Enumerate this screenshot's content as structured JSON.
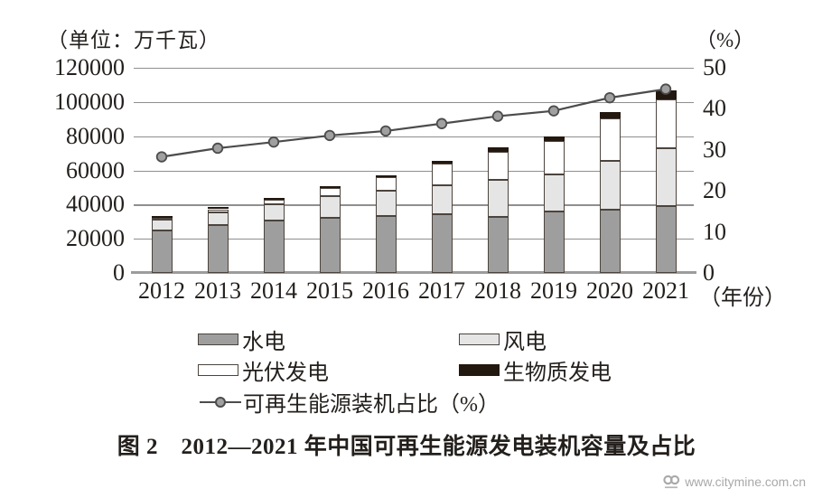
{
  "axes": {
    "left_unit_label": "（单位：万千瓦）",
    "right_unit_label": "（%）",
    "x_unit_label": "（年份）",
    "left_ticks": [
      "120000",
      "100000",
      "80000",
      "60000",
      "40000",
      "20000",
      "0"
    ],
    "right_ticks": [
      "50",
      "40",
      "30",
      "20",
      "10",
      "0"
    ]
  },
  "chart_data": {
    "type": "bar",
    "subtype": "stacked-bars-with-line",
    "categories": [
      "2012",
      "2013",
      "2014",
      "2015",
      "2016",
      "2017",
      "2018",
      "2019",
      "2020",
      "2021"
    ],
    "series": [
      {
        "name": "水电",
        "type": "bar",
        "color": "#9e9e9e",
        "values": [
          24890,
          28040,
          30490,
          32100,
          33210,
          34500,
          32700,
          35900,
          37100,
          39300
        ]
      },
      {
        "name": "风电",
        "type": "bar",
        "color": "#e5e5e5",
        "values": [
          6080,
          7650,
          9660,
          13080,
          14860,
          16700,
          21600,
          21600,
          28400,
          33600
        ]
      },
      {
        "name": "光伏发电",
        "type": "bar",
        "color": "#ffffff",
        "values": [
          340,
          1590,
          2490,
          4320,
          7740,
          12900,
          16500,
          19800,
          24700,
          28800
        ]
      },
      {
        "name": "生物质发电",
        "type": "bar",
        "color": "#221810",
        "values": [
          800,
          850,
          950,
          1030,
          1210,
          1600,
          2900,
          2800,
          3900,
          5300
        ]
      },
      {
        "name": "可再生能源装机占比（%）",
        "type": "line",
        "color": "#4c4c4c",
        "values": [
          28.3,
          30.4,
          31.9,
          33.5,
          34.6,
          36.4,
          38.2,
          39.5,
          42.7,
          44.8
        ]
      }
    ],
    "left_axis": {
      "label": "（单位：万千瓦）",
      "min": 0,
      "max": 120000,
      "step": 20000
    },
    "right_axis": {
      "label": "（%）",
      "min": 0,
      "max": 50,
      "step": 10
    },
    "x_axis_label": "（年份）",
    "grid": "horizontal",
    "legend_position": "bottom"
  },
  "legend": {
    "items": [
      {
        "label": "水电"
      },
      {
        "label": "风电"
      },
      {
        "label": "光伏发电"
      },
      {
        "label": "生物质发电"
      },
      {
        "label": "可再生能源装机占比（%）"
      }
    ]
  },
  "caption": "图 2　2012—2021 年中国可再生能源发电装机容量及占比",
  "watermark": {
    "url_text": "www.citymine.com.cn",
    "logo_name": "citymine-logo"
  },
  "colors": {
    "hydro": "#9e9e9e",
    "wind": "#e5e5e5",
    "solar": "#ffffff",
    "biomass": "#221810",
    "line": "#4c4c4c",
    "marker_fill": "#a0a0a0",
    "gridline": "#8f8f8f",
    "bar_border": "#4c443e",
    "watermark_text": "#a9a9a9"
  }
}
